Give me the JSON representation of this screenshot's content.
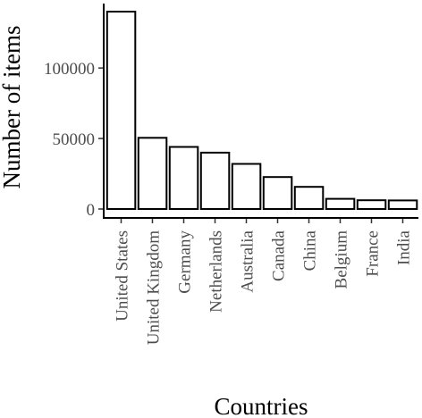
{
  "chart_data": {
    "type": "bar",
    "categories": [
      "United States",
      "United Kingdom",
      "Germany",
      "Netherlands",
      "Australia",
      "Canada",
      "China",
      "Belgium",
      "France",
      "India"
    ],
    "values": [
      140000,
      50500,
      44000,
      40000,
      32000,
      22700,
      15700,
      7200,
      6200,
      6100
    ],
    "xlabel": "Countries",
    "ylabel": "Number of items",
    "ylim": [
      0,
      145000
    ],
    "yticks": [
      0,
      50000,
      100000
    ],
    "ytick_labels": [
      "0",
      "50000",
      "100000"
    ],
    "grid": false,
    "colors": {
      "bar_fill": "#ffffff",
      "bar_stroke": "#000000",
      "axis": "#000000",
      "tick_label": "#4d4d4d"
    }
  }
}
